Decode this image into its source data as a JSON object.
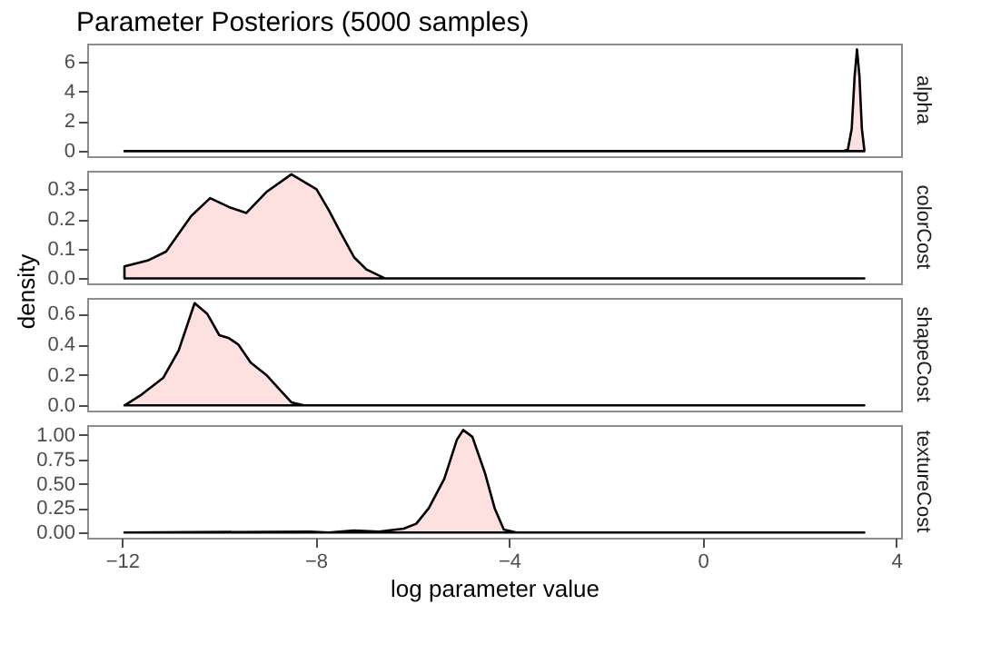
{
  "chart_data": [
    {
      "type": "area",
      "title": "Parameter Posteriors (5000 samples)",
      "xlim": [
        -12.72,
        4.1
      ],
      "xticks": [
        -12,
        -8,
        -4,
        0,
        4
      ],
      "ylim": [
        -0.34,
        7.19
      ],
      "yticks": [
        0,
        2,
        4,
        6
      ],
      "tick_labels": "y",
      "series": [
        {
          "name": "alpha",
          "color": "#fde0e0",
          "x": [
            -11.95,
            2.9,
            3.0,
            3.08,
            3.14,
            3.19,
            3.24,
            3.29,
            3.34
          ],
          "values": [
            0,
            0,
            0.1,
            1.5,
            5,
            6.8,
            5,
            1.5,
            0.1
          ]
        }
      ]
    },
    {
      "type": "area",
      "xlim": [
        -12.72,
        4.1
      ],
      "xticks": [
        -12,
        -8,
        -4,
        0,
        4
      ],
      "ylim": [
        -0.017,
        0.362
      ],
      "yticks": [
        {
          "value": 0,
          "label": "0.0"
        },
        0.1,
        0.2,
        0.3
      ],
      "tick_labels": "y",
      "series": [
        {
          "name": "colorCost",
          "color": "#fde0e0",
          "x": [
            -11.95,
            -11.47,
            -11.09,
            -10.57,
            -10.18,
            -9.79,
            -9.43,
            -9.02,
            -8.5,
            -7.98,
            -7.73,
            -7.47,
            -7.2,
            -6.95,
            -6.57,
            -5.92,
            3.34
          ],
          "values": [
            0.04,
            0.06,
            0.09,
            0.21,
            0.27,
            0.24,
            0.22,
            0.29,
            0.35,
            0.3,
            0.23,
            0.15,
            0.07,
            0.03,
            0,
            0,
            0
          ]
        }
      ]
    },
    {
      "type": "area",
      "ylabel": "density",
      "xlim": [
        -12.72,
        4.1
      ],
      "xticks": [
        -12,
        -8,
        -4,
        0,
        4
      ],
      "ylim": [
        -0.034,
        0.704
      ],
      "yticks": [
        {
          "value": 0,
          "label": "0.0"
        },
        0.2,
        0.4,
        0.6
      ],
      "tick_labels": "y",
      "series": [
        {
          "name": "shapeCost",
          "color": "#fde0e0",
          "x": [
            -11.95,
            -11.6,
            -11.15,
            -10.83,
            -10.5,
            -10.24,
            -9.99,
            -9.79,
            -9.6,
            -9.34,
            -9.02,
            -8.76,
            -8.5,
            -8.24,
            3.34
          ],
          "values": [
            0,
            0.07,
            0.18,
            0.36,
            0.67,
            0.6,
            0.46,
            0.44,
            0.4,
            0.28,
            0.2,
            0.11,
            0.02,
            0,
            0
          ]
        }
      ]
    },
    {
      "type": "area",
      "xlabel": "log parameter value",
      "xlim": [
        -12.72,
        4.1
      ],
      "xticks": [
        -12,
        -8,
        -4,
        0,
        4
      ],
      "ylim": [
        -0.053,
        1.1
      ],
      "yticks": [
        {
          "value": 0,
          "label": "0.00"
        },
        0.25,
        {
          "value": 0.5,
          "label": "0.50"
        },
        0.75,
        {
          "value": 1,
          "label": "1.00"
        }
      ],
      "series": [
        {
          "name": "textureCost",
          "color": "#fde0e0",
          "x": [
            -11.95,
            -8.11,
            -7.73,
            -7.21,
            -6.69,
            -6.18,
            -5.92,
            -5.66,
            -5.34,
            -5.08,
            -4.95,
            -4.76,
            -4.5,
            -4.3,
            -4.11,
            -3.85,
            3.34
          ],
          "values": [
            0,
            0.01,
            0,
            0.02,
            0.01,
            0.04,
            0.09,
            0.25,
            0.55,
            0.95,
            1.05,
            0.98,
            0.61,
            0.25,
            0.03,
            0,
            0
          ]
        }
      ]
    }
  ]
}
